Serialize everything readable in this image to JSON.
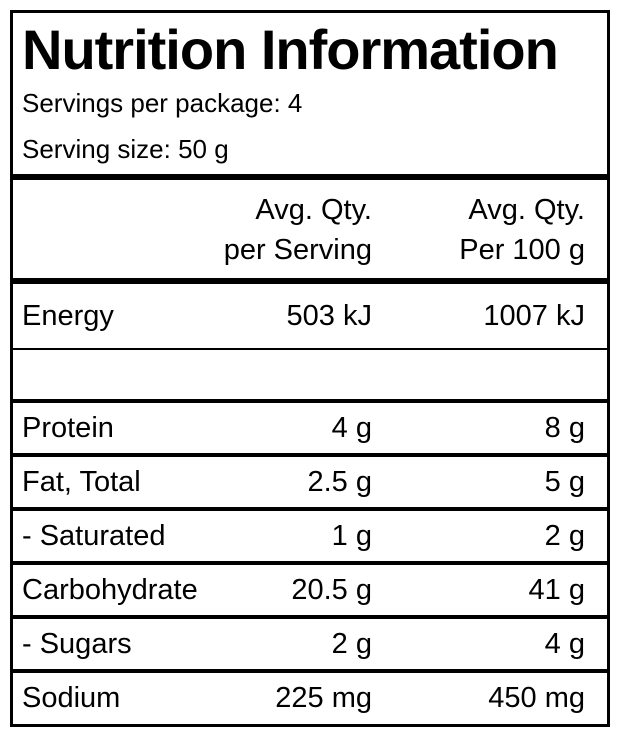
{
  "label": {
    "title": "Nutrition Information",
    "servings_per_package": "Servings per package: 4",
    "serving_size": "Serving size: 50 g",
    "columns": {
      "per_serving_line1": "Avg. Qty.",
      "per_serving_line2": "per Serving",
      "per_100g_line1": "Avg. Qty.",
      "per_100g_line2": "Per 100 g"
    },
    "rows": [
      {
        "nutrient": "Energy",
        "per_serving": "503 kJ",
        "per_100g": "1007 kJ"
      },
      {
        "nutrient": "",
        "per_serving": "",
        "per_100g": ""
      },
      {
        "nutrient": "Protein",
        "per_serving": "4 g",
        "per_100g": "8 g"
      },
      {
        "nutrient": "Fat, Total",
        "per_serving": "2.5 g",
        "per_100g": "5 g"
      },
      {
        "nutrient": "- Saturated",
        "per_serving": "1 g",
        "per_100g": "2 g"
      },
      {
        "nutrient": "Carbohydrate",
        "per_serving": "20.5 g",
        "per_100g": "41 g"
      },
      {
        "nutrient": " - Sugars",
        "per_serving": "2 g",
        "per_100g": "4 g"
      },
      {
        "nutrient": "Sodium",
        "per_serving": "225 mg",
        "per_100g": "450 mg"
      }
    ],
    "colors": {
      "text": "#000000",
      "background": "#ffffff",
      "border": "#000000"
    }
  }
}
